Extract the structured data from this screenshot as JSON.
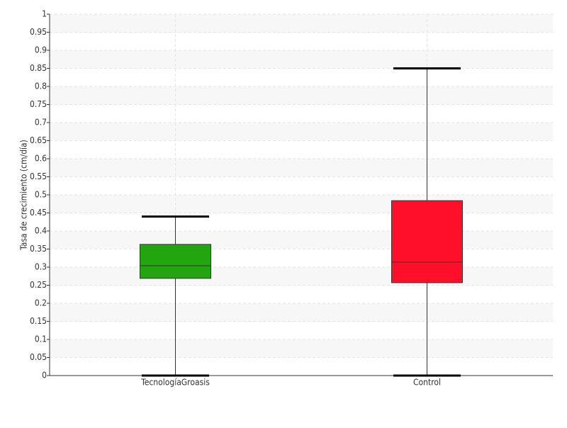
{
  "chart_data": {
    "type": "box",
    "y_label": "Tasa de crecimiento (cm/día)",
    "categories": [
      "TecnologíaGroasis",
      "Control"
    ],
    "colors": [
      "#22a50e",
      "#ff0f2a"
    ],
    "boxes": [
      {
        "min": 0,
        "q1": 0.269,
        "median": 0.304,
        "q3": 0.363,
        "max": 0.44
      },
      {
        "min": 0,
        "q1": 0.257,
        "median": 0.314,
        "q3": 0.484,
        "max": 0.85
      }
    ],
    "ylim": [
      0,
      1
    ],
    "yticks": [
      0,
      0.05,
      0.1,
      0.15,
      0.2,
      0.25,
      0.3,
      0.35,
      0.4,
      0.45,
      0.5,
      0.55,
      0.6,
      0.65,
      0.7,
      0.75,
      0.8,
      0.85,
      0.9,
      0.95,
      1
    ],
    "grid": true
  }
}
